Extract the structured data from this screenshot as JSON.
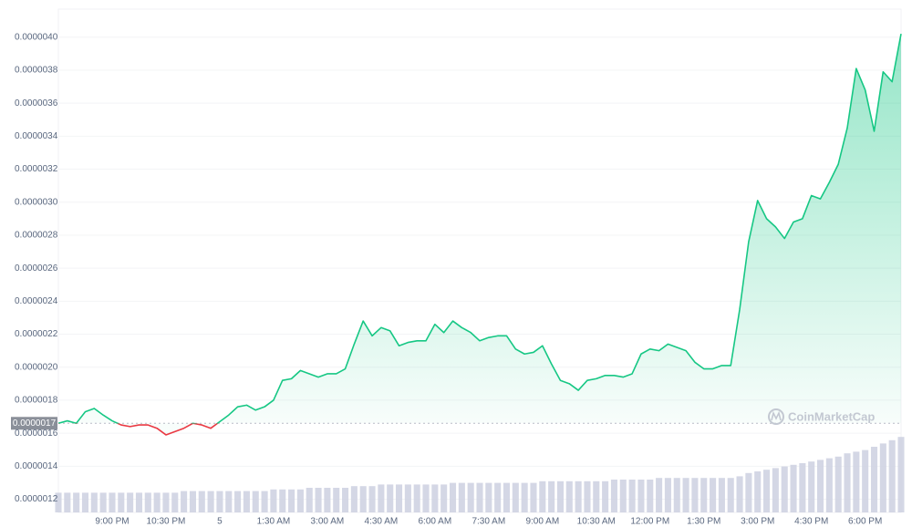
{
  "chart_data": {
    "type": "line",
    "watermark": "CoinMarketCap",
    "color": "#16c784",
    "negative_color": "#ea3943",
    "volume_color": "#cdd0e0",
    "grid": true,
    "ylim": [
      1.12e-06,
      4.17e-06
    ],
    "yticks": [
      {
        "value": 1.2e-06,
        "label": "0.0000012"
      },
      {
        "value": 1.4e-06,
        "label": "0.0000014"
      },
      {
        "value": 1.6e-06,
        "label": "0.0000016"
      },
      {
        "value": 1.8e-06,
        "label": "0.0000018"
      },
      {
        "value": 2e-06,
        "label": "0.0000020"
      },
      {
        "value": 2.2e-06,
        "label": "0.0000022"
      },
      {
        "value": 2.4e-06,
        "label": "0.0000024"
      },
      {
        "value": 2.6e-06,
        "label": "0.0000026"
      },
      {
        "value": 2.8e-06,
        "label": "0.0000028"
      },
      {
        "value": 3e-06,
        "label": "0.0000030"
      },
      {
        "value": 3.2e-06,
        "label": "0.0000032"
      },
      {
        "value": 3.4e-06,
        "label": "0.0000034"
      },
      {
        "value": 3.6e-06,
        "label": "0.0000036"
      },
      {
        "value": 3.8e-06,
        "label": "0.0000038"
      },
      {
        "value": 4e-06,
        "label": "0.0000040"
      }
    ],
    "baseline": {
      "value": 1.66e-06,
      "label": "0.0000017"
    },
    "y2lim": [
      0,
      100
    ],
    "categories": [
      null,
      null,
      null,
      null,
      null,
      null,
      "9:00 PM",
      null,
      null,
      null,
      null,
      null,
      "10:30 PM",
      null,
      null,
      null,
      null,
      null,
      "5",
      null,
      null,
      null,
      null,
      null,
      "1:30 AM",
      null,
      null,
      null,
      null,
      null,
      "3:00 AM",
      null,
      null,
      null,
      null,
      null,
      "4:30 AM",
      null,
      null,
      null,
      null,
      null,
      "6:00 AM",
      null,
      null,
      null,
      null,
      null,
      "7:30 AM",
      null,
      null,
      null,
      null,
      null,
      "9:00 AM",
      null,
      null,
      null,
      null,
      null,
      "10:30 AM",
      null,
      null,
      null,
      null,
      null,
      "12:00 PM",
      null,
      null,
      null,
      null,
      null,
      "1:30 PM",
      null,
      null,
      null,
      null,
      null,
      "3:00 PM",
      null,
      null,
      null,
      null,
      null,
      "4:30 PM",
      null,
      null,
      null,
      null,
      null,
      "6:00 PM",
      null,
      null,
      null,
      null
    ],
    "values": [
      1.66e-06,
      1.675e-06,
      1.66e-06,
      1.73e-06,
      1.75e-06,
      1.71e-06,
      1.675e-06,
      1.65e-06,
      1.64e-06,
      1.65e-06,
      1.65e-06,
      1.63e-06,
      1.59e-06,
      1.61e-06,
      1.63e-06,
      1.66e-06,
      1.65e-06,
      1.63e-06,
      1.67e-06,
      1.71e-06,
      1.76e-06,
      1.77e-06,
      1.74e-06,
      1.76e-06,
      1.8e-06,
      1.92e-06,
      1.93e-06,
      1.98e-06,
      1.96e-06,
      1.94e-06,
      1.96e-06,
      1.96e-06,
      1.99e-06,
      2.14e-06,
      2.28e-06,
      2.19e-06,
      2.24e-06,
      2.22e-06,
      2.13e-06,
      2.15e-06,
      2.16e-06,
      2.16e-06,
      2.26e-06,
      2.21e-06,
      2.28e-06,
      2.24e-06,
      2.21e-06,
      2.16e-06,
      2.18e-06,
      2.19e-06,
      2.19e-06,
      2.11e-06,
      2.08e-06,
      2.09e-06,
      2.13e-06,
      2.02e-06,
      1.92e-06,
      1.9e-06,
      1.86e-06,
      1.92e-06,
      1.93e-06,
      1.95e-06,
      1.95e-06,
      1.94e-06,
      1.96e-06,
      2.08e-06,
      2.11e-06,
      2.1e-06,
      2.14e-06,
      2.12e-06,
      2.1e-06,
      2.03e-06,
      1.99e-06,
      1.99e-06,
      2.01e-06,
      2.01e-06,
      2.35e-06,
      2.76e-06,
      3.01e-06,
      2.9e-06,
      2.85e-06,
      2.78e-06,
      2.88e-06,
      2.9e-06,
      3.04e-06,
      3.02e-06,
      3.12e-06,
      3.23e-06,
      3.45e-06,
      3.81e-06,
      3.68e-06,
      3.43e-06,
      3.79e-06,
      3.73e-06,
      4.02e-06
    ],
    "volume": [
      12,
      12,
      12,
      12,
      12,
      12,
      12,
      12,
      12,
      12,
      12,
      12,
      12,
      12,
      13,
      13,
      13,
      13,
      13,
      13,
      13,
      13,
      13,
      13,
      14,
      14,
      14,
      14,
      15,
      15,
      15,
      15,
      15,
      16,
      16,
      16,
      17,
      17,
      17,
      17,
      17,
      17,
      17,
      17,
      18,
      18,
      18,
      18,
      18,
      18,
      18,
      18,
      18,
      18,
      19,
      19,
      19,
      19,
      19,
      19,
      19,
      19,
      20,
      20,
      20,
      20,
      20,
      21,
      21,
      21,
      21,
      21,
      21,
      21,
      21,
      21,
      22,
      24,
      25,
      26,
      27,
      28,
      29,
      30,
      31,
      32,
      33,
      34,
      36,
      37,
      38,
      40,
      42,
      44,
      46
    ]
  }
}
